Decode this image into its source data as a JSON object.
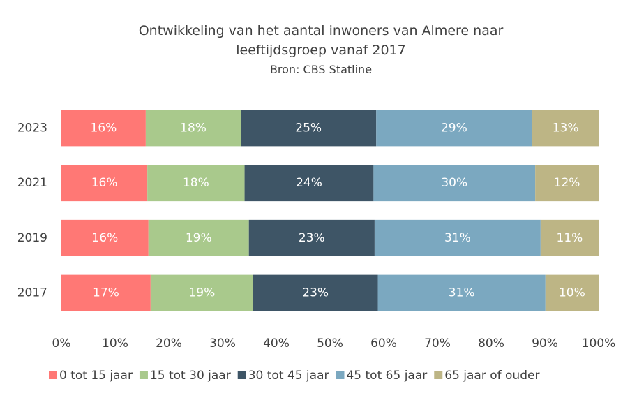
{
  "chart_data": {
    "type": "stacked_barh",
    "title": "Ontwikkeling van het aantal inwoners van Almere naar leeftijdsgroep vanaf 2017",
    "subtitle": "Bron: CBS Statline",
    "categories": [
      "2023",
      "2021",
      "2019",
      "2017"
    ],
    "series": [
      {
        "name": "0 tot 15 jaar",
        "color": "#ff7875",
        "values": [
          15.7,
          16.0,
          16.2,
          16.6
        ],
        "value_labels": [
          "16%",
          "16%",
          "16%",
          "17%"
        ]
      },
      {
        "name": "15 tot 30 jaar",
        "color": "#a9c98c",
        "values": [
          17.7,
          18.1,
          18.7,
          19.1
        ],
        "value_labels": [
          "18%",
          "18%",
          "19%",
          "19%"
        ]
      },
      {
        "name": "30 tot 45 jaar",
        "color": "#3e5566",
        "values": [
          25.2,
          24.0,
          23.4,
          23.2
        ],
        "value_labels": [
          "25%",
          "24%",
          "23%",
          "23%"
        ]
      },
      {
        "name": "45 tot 65 jaar",
        "color": "#7ba8c0",
        "values": [
          29.0,
          30.1,
          30.9,
          31.2
        ],
        "value_labels": [
          "29%",
          "30%",
          "31%",
          "31%"
        ]
      },
      {
        "name": "65 jaar of ouder",
        "color": "#bdb585",
        "values": [
          12.5,
          11.8,
          10.8,
          9.9
        ],
        "value_labels": [
          "13%",
          "12%",
          "11%",
          "10%"
        ]
      }
    ],
    "xlim": [
      0,
      100
    ],
    "xticks": [
      {
        "value": 0,
        "label": "0%"
      },
      {
        "value": 10,
        "label": "10%"
      },
      {
        "value": 20,
        "label": "20%"
      },
      {
        "value": 30,
        "label": "30%"
      },
      {
        "value": 40,
        "label": "40%"
      },
      {
        "value": 50,
        "label": "50%"
      },
      {
        "value": 60,
        "label": "60%"
      },
      {
        "value": 70,
        "label": "70%"
      },
      {
        "value": 80,
        "label": "80%"
      },
      {
        "value": 90,
        "label": "90%"
      },
      {
        "value": 100,
        "label": "100%"
      }
    ],
    "grid": false,
    "legend": "bottom"
  }
}
